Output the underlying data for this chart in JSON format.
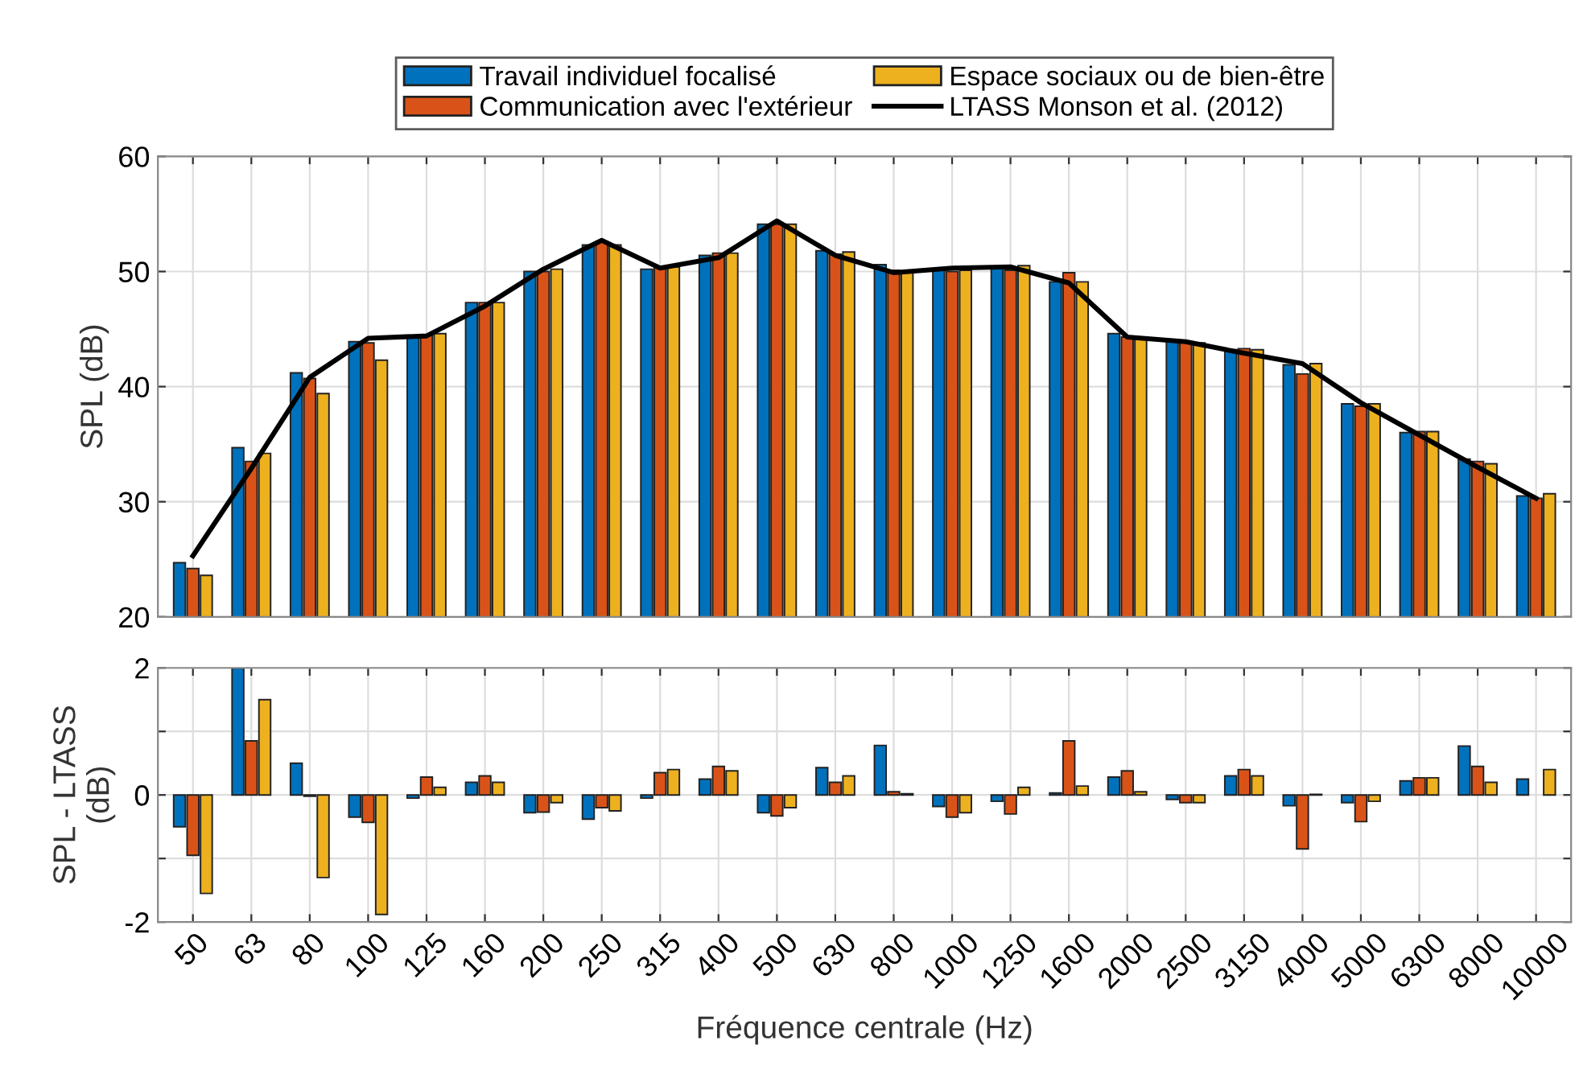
{
  "chart_data": [
    {
      "type": "bar",
      "ylabel": "SPL (dB)",
      "categories": [
        "50",
        "63",
        "80",
        "100",
        "125",
        "160",
        "200",
        "250",
        "315",
        "400",
        "500",
        "630",
        "800",
        "1000",
        "1250",
        "1600",
        "2000",
        "2500",
        "3150",
        "4000",
        "5000",
        "6300",
        "8000",
        "10000"
      ],
      "series": [
        {
          "name": "Travail individuel focalisé",
          "color": "#0072bd",
          "values": [
            24.7,
            34.7,
            41.2,
            43.9,
            44.4,
            47.3,
            50.0,
            52.3,
            50.2,
            51.4,
            54.1,
            51.8,
            50.6,
            50.2,
            50.3,
            49.1,
            44.6,
            44.0,
            43.2,
            41.9,
            38.5,
            36.0,
            33.7,
            30.5
          ]
        },
        {
          "name": "Communication avec l'extérieur",
          "color": "#d95319",
          "values": [
            24.2,
            33.5,
            40.7,
            43.8,
            44.5,
            47.3,
            50.0,
            52.6,
            50.4,
            51.6,
            54.1,
            51.5,
            50.1,
            50.0,
            50.1,
            49.9,
            44.3,
            43.9,
            43.3,
            41.1,
            38.3,
            36.1,
            33.5,
            30.3
          ]
        },
        {
          "name": "Espace sociaux ou de bien-être",
          "color": "#edb120",
          "values": [
            23.6,
            34.2,
            39.4,
            42.3,
            44.6,
            47.3,
            50.2,
            52.3,
            50.4,
            51.6,
            54.1,
            51.7,
            50.0,
            50.1,
            50.5,
            49.1,
            44.2,
            43.8,
            43.2,
            42.0,
            38.5,
            36.1,
            33.3,
            30.7
          ]
        },
        {
          "name": "LTASS Monson et al. (2012)",
          "type": "line",
          "color": "#000000",
          "values": [
            25.3,
            32.9,
            40.8,
            44.2,
            44.4,
            47.0,
            50.2,
            52.7,
            50.3,
            51.2,
            54.4,
            51.4,
            49.9,
            50.3,
            50.4,
            49.0,
            44.3,
            43.9,
            42.9,
            42.0,
            38.6,
            35.8,
            33.0,
            30.3
          ]
        }
      ],
      "ylim": [
        20,
        60
      ],
      "yticks": [
        20,
        30,
        40,
        50,
        60
      ],
      "grid": true,
      "legend": "top",
      "tick_labels": "y"
    },
    {
      "type": "bar",
      "ylabel": "SPL - LTASS\n(dB)",
      "xlabel": "Fréquence centrale (Hz)",
      "categories": [
        "50",
        "63",
        "80",
        "100",
        "125",
        "160",
        "200",
        "250",
        "315",
        "400",
        "500",
        "630",
        "800",
        "1000",
        "1250",
        "1600",
        "2000",
        "2500",
        "3150",
        "4000",
        "5000",
        "6300",
        "8000",
        "10000"
      ],
      "series": [
        {
          "color": "#0072bd",
          "values": [
            -0.5,
            2.0,
            0.5,
            -0.35,
            -0.05,
            0.2,
            -0.28,
            -0.38,
            -0.05,
            0.25,
            -0.28,
            0.43,
            0.78,
            -0.18,
            -0.1,
            0.03,
            0.28,
            -0.07,
            0.3,
            -0.17,
            -0.12,
            0.22,
            0.77,
            0.25
          ]
        },
        {
          "color": "#d95319",
          "values": [
            -0.95,
            0.85,
            -0.02,
            -0.43,
            0.28,
            0.3,
            -0.27,
            -0.2,
            0.35,
            0.45,
            -0.33,
            0.2,
            0.05,
            -0.35,
            -0.3,
            0.85,
            0.38,
            -0.12,
            0.4,
            -0.85,
            -0.42,
            0.27,
            0.45,
            null
          ]
        },
        {
          "color": "#edb120",
          "values": [
            -1.55,
            1.5,
            -1.3,
            -1.88,
            0.12,
            0.2,
            -0.12,
            -0.25,
            0.4,
            0.38,
            -0.2,
            0.3,
            0.02,
            -0.28,
            0.12,
            0.14,
            0.05,
            -0.12,
            0.3,
            0.01,
            -0.1,
            0.27,
            0.2,
            0.4
          ]
        }
      ],
      "ylim": [
        -2,
        2
      ],
      "yticks": [
        -2,
        {
          "value": -1,
          "label": null
        },
        0,
        {
          "value": 1,
          "label": null
        },
        2
      ],
      "grid": true
    }
  ]
}
